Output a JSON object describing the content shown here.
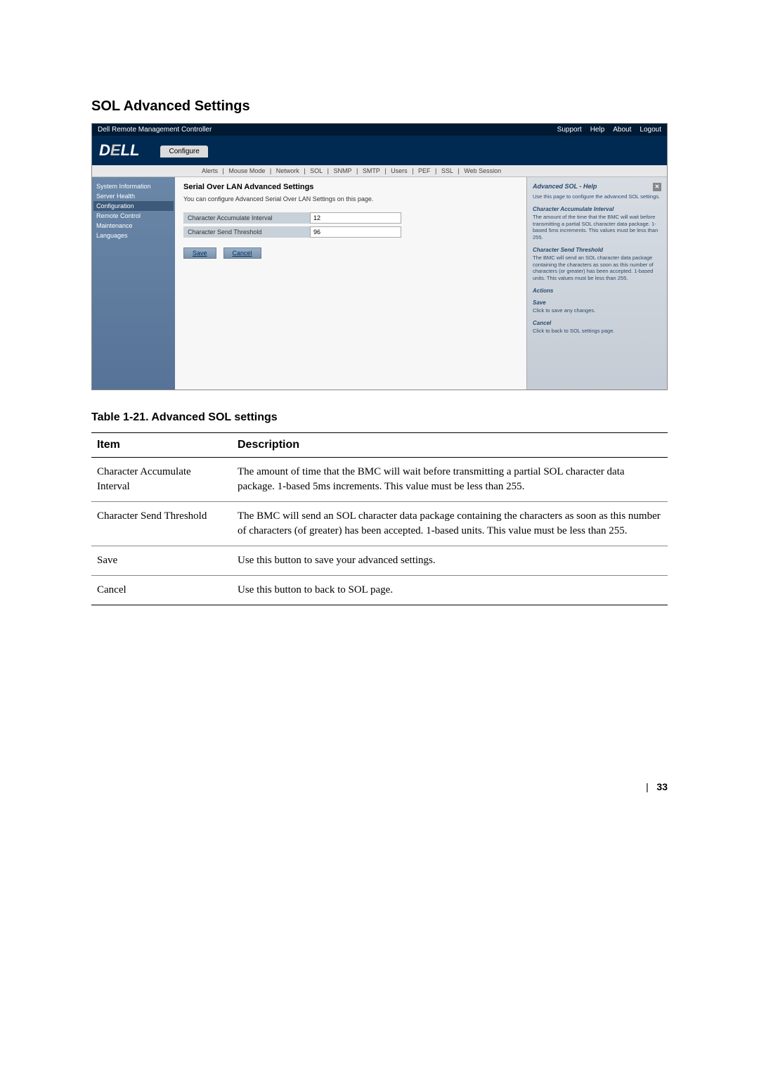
{
  "section_heading": "SOL Advanced Settings",
  "screenshot": {
    "titlebar": {
      "title": "Dell Remote Management Controller",
      "links": [
        "Support",
        "Help",
        "About",
        "Logout"
      ]
    },
    "logo": "DELL",
    "tab_active": "Configure",
    "subtabs": [
      "Alerts",
      "Mouse Mode",
      "Network",
      "SOL",
      "SNMP",
      "SMTP",
      "Users",
      "PEF",
      "SSL",
      "Web Session"
    ],
    "sidebar": {
      "items": [
        {
          "label": "System Information",
          "active": false
        },
        {
          "label": "Server Health",
          "active": false
        },
        {
          "label": "Configuration",
          "active": true
        },
        {
          "label": "Remote Control",
          "active": false
        },
        {
          "label": "Maintenance",
          "active": false
        },
        {
          "label": "Languages",
          "active": false
        }
      ]
    },
    "main": {
      "title": "Serial Over LAN Advanced Settings",
      "description": "You can configure Advanced Serial Over LAN Settings on this page.",
      "fields": [
        {
          "label": "Character Accumulate Interval",
          "value": "12"
        },
        {
          "label": "Character Send Threshold",
          "value": "96"
        }
      ],
      "buttons": {
        "save": "Save",
        "cancel": "Cancel"
      }
    },
    "help": {
      "title": "Advanced SOL - Help",
      "intro": "Use this page to configure the advanced SOL settings.",
      "sections": [
        {
          "title": "Character Accumulate Interval",
          "text": "The amount of the time that the BMC will wait before transmitting a partial SOL character data package. 1-based 5ms increments. This values must be less than 255."
        },
        {
          "title": "Character Send Threshold",
          "text": "The BMC will send an SOL character data package containing the characters as soon as this number of characters (or greater) has been accepted. 1-based units. This values must be less than 255."
        },
        {
          "title": "Actions",
          "text": ""
        },
        {
          "title": "Save",
          "text": "Click to save any changes."
        },
        {
          "title": "Cancel",
          "text": "Click to back to SOL settings page."
        }
      ]
    }
  },
  "table_caption": "Table 1-21.   Advanced SOL settings",
  "table": {
    "headers": {
      "item": "Item",
      "description": "Description"
    },
    "rows": [
      {
        "item": "Character Accumulate Interval",
        "description": "The amount of time that the BMC will wait before transmitting a partial SOL character data package. 1-based 5ms increments. This value must be less than 255."
      },
      {
        "item": "Character Send Threshold",
        "description": "The BMC will send an SOL character data package containing the characters as soon as this number of characters (of greater) has been accepted. 1-based units. This value must be less than 255."
      },
      {
        "item": "Save",
        "description": "Use this button to save your advanced settings."
      },
      {
        "item": "Cancel",
        "description": "Use this button to back to SOL page."
      }
    ]
  },
  "page_number": "33"
}
